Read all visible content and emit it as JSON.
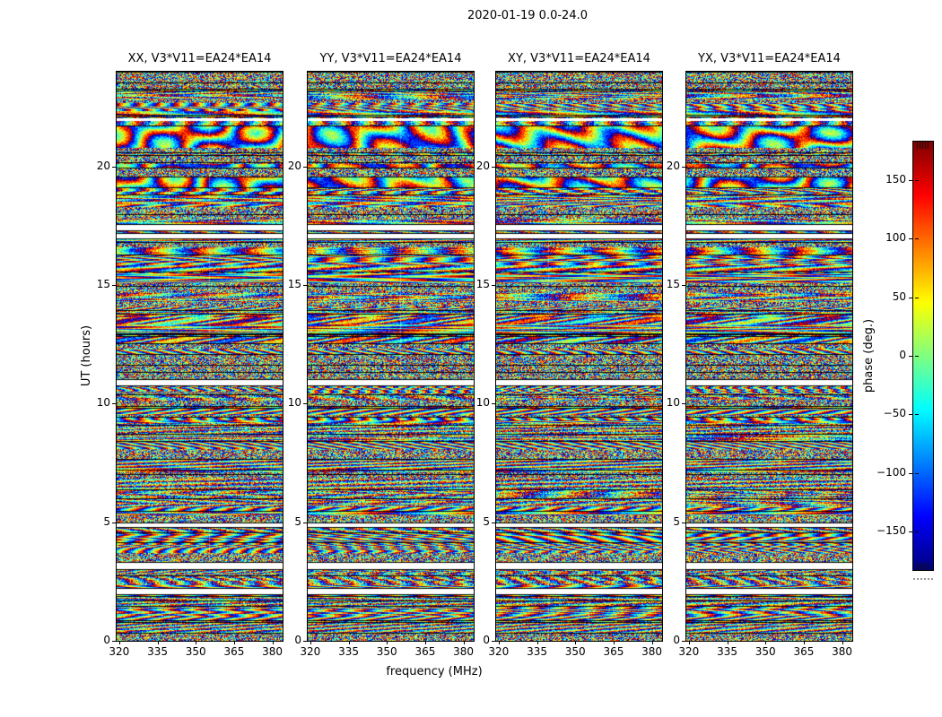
{
  "chart_data": {
    "type": "heatmap",
    "title": "2020-01-19 0.0-24.0",
    "xlabel": "frequency (MHz)",
    "ylabel": "UT (hours)",
    "x_axis": {
      "range": [
        319,
        384
      ],
      "tick_values": [
        320,
        335,
        350,
        365,
        380
      ],
      "tick_labels": [
        "320",
        "335",
        "350",
        "365",
        "380"
      ]
    },
    "y_axis": {
      "range": [
        0,
        24
      ],
      "tick_values": [
        0,
        5,
        10,
        15,
        20
      ],
      "tick_labels": [
        "0",
        "5",
        "10",
        "15",
        "20"
      ]
    },
    "panels": [
      {
        "id": "XX",
        "title": "XX, V3*V11=EA24*EA14"
      },
      {
        "id": "YY",
        "title": "YY, V3*V11=EA24*EA14"
      },
      {
        "id": "XY",
        "title": "XY, V3*V11=EA24*EA14"
      },
      {
        "id": "YX",
        "title": "YX, V3*V11=EA24*EA14"
      }
    ],
    "colorbar": {
      "label": "phase (deg.)",
      "tick_values": [
        150,
        100,
        50,
        0,
        -50,
        -100,
        -150
      ],
      "tick_labels": [
        "150",
        "100",
        "50",
        "0",
        "−50",
        "−100",
        "−150"
      ],
      "range": [
        -183,
        183
      ],
      "colormap": "jet"
    },
    "flagged_time_ranges_ut_hours": [
      [
        2.0,
        2.2
      ],
      [
        3.05,
        3.3
      ],
      [
        4.85,
        4.95
      ],
      [
        10.8,
        11.0
      ],
      [
        17.0,
        17.15
      ],
      [
        17.35,
        17.55
      ],
      [
        21.95,
        22.05
      ]
    ],
    "content_note": "dense wrapped visibility-phase fringes (jet colormap) vs frequency and UT; white rows = flagged times, near-black rows = dropped integrations; smooth coherent phase structure near 18.0-21.5 UT"
  }
}
